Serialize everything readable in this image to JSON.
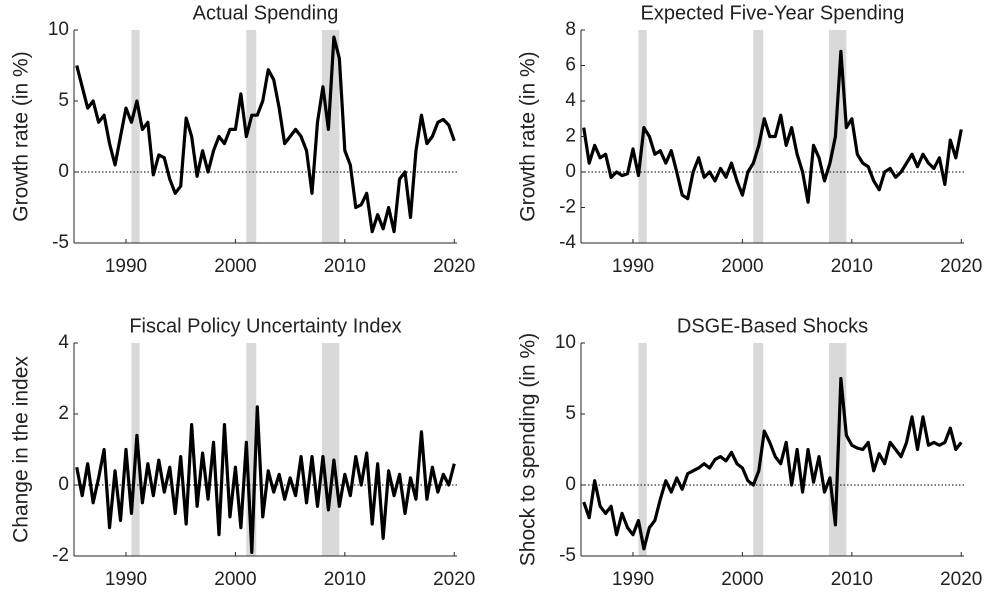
{
  "chart_data": [
    {
      "type": "line",
      "title": "Actual Spending",
      "y_label": "Growth rate (in %)",
      "color": "#000000",
      "x": [
        1985.5,
        1986,
        1986.5,
        1987,
        1987.5,
        1988,
        1988.5,
        1989,
        1989.5,
        1990,
        1990.5,
        1991,
        1991.5,
        1992,
        1992.5,
        1993,
        1993.5,
        1994,
        1994.5,
        1995,
        1995.5,
        1996,
        1996.5,
        1997,
        1997.5,
        1998,
        1998.5,
        1999,
        1999.5,
        2000,
        2000.5,
        2001,
        2001.5,
        2002,
        2002.5,
        2003,
        2003.5,
        2004,
        2004.5,
        2005,
        2005.5,
        2006,
        2006.5,
        2007,
        2007.5,
        2008,
        2008.5,
        2009,
        2009.5,
        2010,
        2010.5,
        2011,
        2011.5,
        2012,
        2012.5,
        2013,
        2013.5,
        2014,
        2014.5,
        2015,
        2015.5,
        2016,
        2016.5,
        2017,
        2017.5,
        2018,
        2018.5,
        2019,
        2019.5,
        2020
      ],
      "values": [
        7.5,
        6,
        4.5,
        5,
        3.5,
        4,
        2,
        0.5,
        2.5,
        4.5,
        3.5,
        5,
        3,
        3.5,
        -0.2,
        1.2,
        1,
        -0.5,
        -1.5,
        -1,
        3.8,
        2.5,
        -0.3,
        1.5,
        0,
        1.5,
        2.5,
        2,
        3,
        3,
        5.5,
        2.5,
        4,
        4,
        5,
        7.2,
        6.5,
        4.5,
        2,
        2.5,
        3,
        2.5,
        1.5,
        -1.5,
        3.5,
        6,
        3,
        9.5,
        8,
        1.5,
        0.5,
        -2.5,
        -2.3,
        -1.5,
        -4.2,
        -3,
        -4,
        -2.5,
        -4.2,
        -0.5,
        0,
        -3.2,
        1.5,
        4,
        2,
        2.5,
        3.5,
        3.7,
        3.3,
        2.2
      ],
      "xlim": [
        1985.25,
        2020.25
      ],
      "xticks": [
        1990,
        2000,
        2010,
        2020
      ],
      "ylim": [
        -5,
        10
      ],
      "yticks": [
        -5,
        0,
        5,
        10
      ],
      "hline": 0,
      "recessions": [
        [
          1990.5,
          1991.25
        ],
        [
          2001.0,
          2001.9
        ],
        [
          2007.9,
          2009.5
        ]
      ]
    },
    {
      "type": "line",
      "title": "Expected Five-Year Spending",
      "y_label": "Growth rate (in %)",
      "color": "#000000",
      "x": [
        1985.5,
        1986,
        1986.5,
        1987,
        1987.5,
        1988,
        1988.5,
        1989,
        1989.5,
        1990,
        1990.5,
        1991,
        1991.5,
        1992,
        1992.5,
        1993,
        1993.5,
        1994,
        1994.5,
        1995,
        1995.5,
        1996,
        1996.5,
        1997,
        1997.5,
        1998,
        1998.5,
        1999,
        1999.5,
        2000,
        2000.5,
        2001,
        2001.5,
        2002,
        2002.5,
        2003,
        2003.5,
        2004,
        2004.5,
        2005,
        2005.5,
        2006,
        2006.5,
        2007,
        2007.5,
        2008,
        2008.5,
        2009,
        2009.5,
        2010,
        2010.5,
        2011,
        2011.5,
        2012,
        2012.5,
        2013,
        2013.5,
        2014,
        2014.5,
        2015,
        2015.5,
        2016,
        2016.5,
        2017,
        2017.5,
        2018,
        2018.5,
        2019,
        2019.5,
        2020
      ],
      "values": [
        2.5,
        0.5,
        1.5,
        0.8,
        1,
        -0.3,
        0,
        -0.2,
        -0.1,
        1.3,
        -0.2,
        2.5,
        2,
        1,
        1.2,
        0.5,
        1.2,
        0,
        -1.3,
        -1.5,
        0,
        0.8,
        -0.3,
        0,
        -0.5,
        0.2,
        -0.3,
        0.5,
        -0.5,
        -1.3,
        0,
        0.5,
        1.5,
        3,
        2,
        2,
        3.2,
        1.5,
        2.5,
        1,
        0,
        -1.7,
        1.5,
        0.8,
        -0.5,
        0.5,
        2,
        6.8,
        2.5,
        3,
        1,
        0.5,
        0.3,
        -0.5,
        -1,
        0,
        0.2,
        -0.3,
        0,
        0.5,
        1,
        0.3,
        1,
        0.5,
        0.2,
        0.8,
        -0.7,
        1.8,
        0.8,
        2.4
      ],
      "xlim": [
        1985.25,
        2020.25
      ],
      "xticks": [
        1990,
        2000,
        2010,
        2020
      ],
      "ylim": [
        -4,
        8
      ],
      "yticks": [
        -4,
        -2,
        0,
        2,
        4,
        6,
        8
      ],
      "hline": 0,
      "recessions": [
        [
          1990.5,
          1991.25
        ],
        [
          2001.0,
          2001.9
        ],
        [
          2007.9,
          2009.5
        ]
      ]
    },
    {
      "type": "line",
      "title": "Fiscal Policy Uncertainty Index",
      "y_label": "Change in the index",
      "color": "#000000",
      "x": [
        1985.5,
        1986,
        1986.5,
        1987,
        1987.5,
        1988,
        1988.5,
        1989,
        1989.5,
        1990,
        1990.5,
        1991,
        1991.5,
        1992,
        1992.5,
        1993,
        1993.5,
        1994,
        1994.5,
        1995,
        1995.5,
        1996,
        1996.5,
        1997,
        1997.5,
        1998,
        1998.5,
        1999,
        1999.5,
        2000,
        2000.5,
        2001,
        2001.5,
        2002,
        2002.5,
        2003,
        2003.5,
        2004,
        2004.5,
        2005,
        2005.5,
        2006,
        2006.5,
        2007,
        2007.5,
        2008,
        2008.5,
        2009,
        2009.5,
        2010,
        2010.5,
        2011,
        2011.5,
        2012,
        2012.5,
        2013,
        2013.5,
        2014,
        2014.5,
        2015,
        2015.5,
        2016,
        2016.5,
        2017,
        2017.5,
        2018,
        2018.5,
        2019,
        2019.5,
        2020
      ],
      "values": [
        0.5,
        -0.3,
        0.6,
        -0.5,
        0.2,
        1,
        -1.2,
        0.4,
        -1,
        1,
        -0.8,
        1.4,
        -0.5,
        0.6,
        -0.3,
        0.7,
        -0.2,
        0.5,
        -0.8,
        0.8,
        -1.1,
        1.7,
        -0.6,
        0.9,
        -0.4,
        1.2,
        -1.4,
        1.7,
        -0.9,
        0.5,
        -1.2,
        1.2,
        -1.9,
        2.2,
        -0.9,
        0.4,
        -0.2,
        0.3,
        -0.4,
        0.2,
        -0.3,
        0.8,
        -0.5,
        0.8,
        -0.6,
        0.8,
        -0.7,
        0.7,
        -0.6,
        0.3,
        -0.3,
        0.8,
        0,
        0.9,
        -1.1,
        0.6,
        -1.5,
        0.4,
        -0.3,
        0.3,
        -0.8,
        0.2,
        -0.4,
        1.5,
        -0.4,
        0.5,
        -0.2,
        0.3,
        0,
        0.6
      ],
      "xlim": [
        1985.25,
        2020.25
      ],
      "xticks": [
        1990,
        2000,
        2010,
        2020
      ],
      "ylim": [
        -2,
        4
      ],
      "yticks": [
        -2,
        0,
        2,
        4
      ],
      "hline": 0,
      "recessions": [
        [
          1990.5,
          1991.25
        ],
        [
          2001.0,
          2001.9
        ],
        [
          2007.9,
          2009.5
        ]
      ]
    },
    {
      "type": "line",
      "title": "DSGE-Based Shocks",
      "y_label": "Shock to spending (in %)",
      "color": "#000000",
      "x": [
        1985.5,
        1986,
        1986.5,
        1987,
        1987.5,
        1988,
        1988.5,
        1989,
        1989.5,
        1990,
        1990.5,
        1991,
        1991.5,
        1992,
        1992.5,
        1993,
        1993.5,
        1994,
        1994.5,
        1995,
        1995.5,
        1996,
        1996.5,
        1997,
        1997.5,
        1998,
        1998.5,
        1999,
        1999.5,
        2000,
        2000.5,
        2001,
        2001.5,
        2002,
        2002.5,
        2003,
        2003.5,
        2004,
        2004.5,
        2005,
        2005.5,
        2006,
        2006.5,
        2007,
        2007.5,
        2008,
        2008.5,
        2009,
        2009.5,
        2010,
        2010.5,
        2011,
        2011.5,
        2012,
        2012.5,
        2013,
        2013.5,
        2014,
        2014.5,
        2015,
        2015.5,
        2016,
        2016.5,
        2017,
        2017.5,
        2018,
        2018.5,
        2019,
        2019.5,
        2020
      ],
      "values": [
        -1.2,
        -2.3,
        0.3,
        -1.5,
        -2,
        -1.5,
        -3.5,
        -2,
        -3,
        -3.5,
        -2.5,
        -4.5,
        -3,
        -2.5,
        -1,
        0.3,
        -0.5,
        0.5,
        -0.3,
        0.8,
        1,
        1.2,
        1.5,
        1.2,
        1.8,
        2,
        1.7,
        2.3,
        1.5,
        1.2,
        0.3,
        0,
        1,
        3.8,
        3,
        2,
        1.5,
        3,
        0,
        2.5,
        -0.5,
        2.5,
        0.2,
        2,
        -0.5,
        0.5,
        -2.8,
        7.5,
        3.5,
        2.8,
        2.6,
        2.5,
        3,
        1,
        2.2,
        1.5,
        3,
        2.5,
        2,
        3,
        4.8,
        2.5,
        4.8,
        2.8,
        3,
        2.8,
        3,
        4,
        2.5,
        3
      ],
      "xlim": [
        1985.25,
        2020.25
      ],
      "xticks": [
        1990,
        2000,
        2010,
        2020
      ],
      "ylim": [
        -5,
        10
      ],
      "yticks": [
        -5,
        0,
        5,
        10
      ],
      "hline": 0,
      "recessions": [
        [
          1990.5,
          1991.25
        ],
        [
          2001.0,
          2001.9
        ],
        [
          2007.9,
          2009.5
        ]
      ]
    }
  ]
}
